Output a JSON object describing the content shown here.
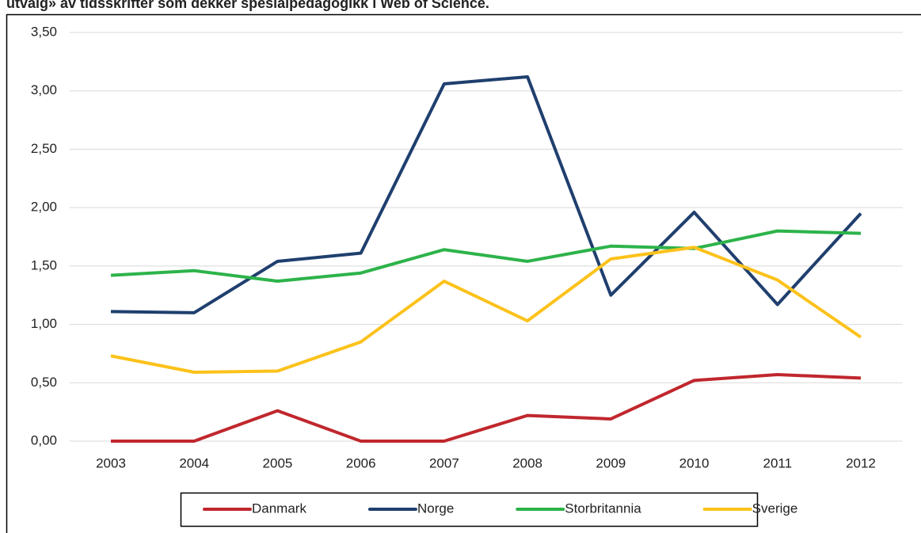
{
  "chart_data": {
    "type": "line",
    "title": "utvalg» av tidsskrifter som dekker spesialpedagogikk i Web of Science.",
    "categories": [
      "2003",
      "2004",
      "2005",
      "2006",
      "2007",
      "2008",
      "2009",
      "2010",
      "2011",
      "2012"
    ],
    "series": [
      {
        "name": "Danmark",
        "color": "#c0272d",
        "values": [
          0,
          0,
          0.26,
          0,
          0,
          0.22,
          0.19,
          0.52,
          0.57,
          0.54
        ]
      },
      {
        "name": "Norge",
        "color": "#1f3f6e",
        "values": [
          1.11,
          1.1,
          1.54,
          1.61,
          3.06,
          3.12,
          1.25,
          1.96,
          1.17,
          1.95
        ]
      },
      {
        "name": "Storbritannia",
        "color": "#2db34a",
        "values": [
          1.42,
          1.46,
          1.37,
          1.44,
          1.64,
          1.54,
          1.67,
          1.65,
          1.8,
          1.78
        ]
      },
      {
        "name": "Sverige",
        "color": "#fcc21b",
        "values": [
          0.73,
          0.59,
          0.6,
          0.85,
          1.37,
          1.03,
          1.56,
          1.66,
          1.38,
          0.89
        ]
      }
    ],
    "ylim": [
      0,
      3.5
    ],
    "yticks": [
      {
        "value": 0,
        "label": "0,00"
      },
      {
        "value": 0.5,
        "label": "0,50"
      },
      {
        "value": 1,
        "label": "1,00"
      },
      {
        "value": 1.5,
        "label": "1,50"
      },
      {
        "value": 2,
        "label": "2,00"
      },
      {
        "value": 2.5,
        "label": "2,50"
      },
      {
        "value": 3,
        "label": "3,00"
      },
      {
        "value": 3.5,
        "label": "3,50"
      }
    ],
    "grid": true,
    "legend": "bottom"
  }
}
